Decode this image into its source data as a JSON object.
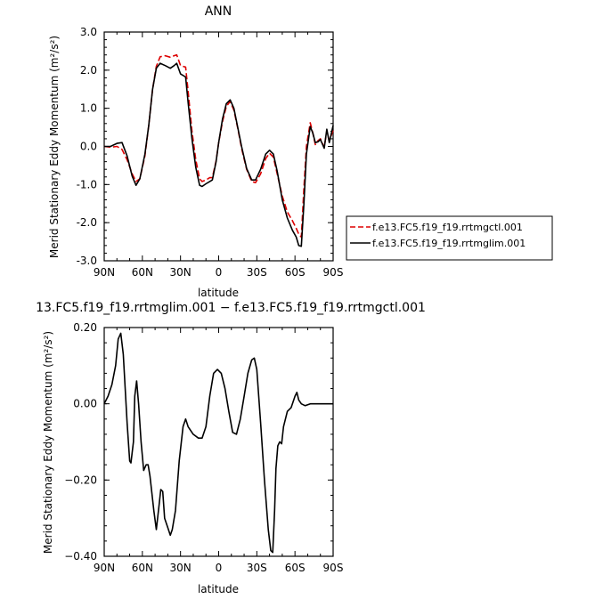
{
  "chart_data": [
    {
      "type": "line",
      "title": "ANN",
      "xlabel": "latitude",
      "ylabel": "Merid Stationary Eddy Momentum (m²/s²)",
      "xlim": [
        90,
        -90
      ],
      "ylim": [
        -3.0,
        3.0
      ],
      "x_ticks": [
        90,
        60,
        30,
        0,
        -30,
        -60,
        -90
      ],
      "x_tick_labels": [
        "90N",
        "60N",
        "30N",
        "0",
        "30S",
        "60S",
        "90S"
      ],
      "y_ticks": [
        -3.0,
        -2.0,
        -1.0,
        0.0,
        1.0,
        2.0,
        3.0
      ],
      "y_tick_labels": [
        "-3.0",
        "-2.0",
        "-1.0",
        "0.0",
        "1.0",
        "2.0",
        "3.0"
      ],
      "grid": false,
      "legend_position": "right",
      "series": [
        {
          "name": "f.e13.FC5.f19_f19.rrtmgctl.001",
          "color": "#dd0000",
          "dash": "dashed",
          "points": [
            [
              90,
              0.0
            ],
            [
              85,
              -0.02
            ],
            [
              80,
              0.0
            ],
            [
              76,
              -0.08
            ],
            [
              72,
              -0.35
            ],
            [
              68,
              -0.72
            ],
            [
              65,
              -0.92
            ],
            [
              62,
              -0.85
            ],
            [
              58,
              -0.25
            ],
            [
              55,
              0.55
            ],
            [
              52,
              1.5
            ],
            [
              49,
              2.1
            ],
            [
              46,
              2.35
            ],
            [
              42,
              2.38
            ],
            [
              38,
              2.34
            ],
            [
              35,
              2.38
            ],
            [
              33,
              2.4
            ],
            [
              30,
              2.12
            ],
            [
              26,
              2.08
            ],
            [
              24,
              1.45
            ],
            [
              21,
              0.4
            ],
            [
              18,
              -0.35
            ],
            [
              15,
              -0.85
            ],
            [
              13,
              -0.92
            ],
            [
              10,
              -0.88
            ],
            [
              7,
              -0.82
            ],
            [
              5,
              -0.82
            ],
            [
              2,
              -0.38
            ],
            [
              0,
              0.1
            ],
            [
              -3,
              0.65
            ],
            [
              -6,
              1.05
            ],
            [
              -9,
              1.18
            ],
            [
              -12,
              0.95
            ],
            [
              -15,
              0.48
            ],
            [
              -18,
              -0.05
            ],
            [
              -22,
              -0.6
            ],
            [
              -26,
              -0.92
            ],
            [
              -29,
              -0.95
            ],
            [
              -33,
              -0.72
            ],
            [
              -37,
              -0.32
            ],
            [
              -40,
              -0.18
            ],
            [
              -43,
              -0.28
            ],
            [
              -46,
              -0.72
            ],
            [
              -50,
              -1.3
            ],
            [
              -54,
              -1.72
            ],
            [
              -58,
              -1.95
            ],
            [
              -61,
              -2.15
            ],
            [
              -63,
              -2.3
            ],
            [
              -65,
              -2.38
            ],
            [
              -67,
              -1.1
            ],
            [
              -69,
              0.0
            ],
            [
              -72,
              0.62
            ],
            [
              -74,
              0.35
            ],
            [
              -76,
              0.05
            ],
            [
              -78,
              0.15
            ],
            [
              -80,
              0.2
            ],
            [
              -83,
              -0.02
            ],
            [
              -85,
              0.4
            ],
            [
              -87,
              0.15
            ],
            [
              -90,
              0.42
            ]
          ]
        },
        {
          "name": "f.e13.FC5.f19_f19.rrtmglim.001",
          "color": "#000000",
          "dash": "solid",
          "points": [
            [
              90,
              0.0
            ],
            [
              85,
              0.0
            ],
            [
              80,
              0.08
            ],
            [
              76,
              0.1
            ],
            [
              72,
              -0.25
            ],
            [
              68,
              -0.78
            ],
            [
              65,
              -1.02
            ],
            [
              62,
              -0.85
            ],
            [
              58,
              -0.2
            ],
            [
              55,
              0.55
            ],
            [
              52,
              1.5
            ],
            [
              49,
              2.05
            ],
            [
              46,
              2.18
            ],
            [
              42,
              2.12
            ],
            [
              38,
              2.05
            ],
            [
              35,
              2.12
            ],
            [
              33,
              2.18
            ],
            [
              30,
              1.9
            ],
            [
              26,
              1.82
            ],
            [
              24,
              1.15
            ],
            [
              21,
              0.2
            ],
            [
              18,
              -0.55
            ],
            [
              15,
              -1.02
            ],
            [
              13,
              -1.05
            ],
            [
              10,
              -0.98
            ],
            [
              7,
              -0.92
            ],
            [
              5,
              -0.88
            ],
            [
              2,
              -0.4
            ],
            [
              0,
              0.1
            ],
            [
              -3,
              0.72
            ],
            [
              -6,
              1.12
            ],
            [
              -9,
              1.22
            ],
            [
              -12,
              1.0
            ],
            [
              -15,
              0.5
            ],
            [
              -18,
              0.0
            ],
            [
              -22,
              -0.58
            ],
            [
              -26,
              -0.88
            ],
            [
              -29,
              -0.88
            ],
            [
              -33,
              -0.6
            ],
            [
              -37,
              -0.2
            ],
            [
              -40,
              -0.1
            ],
            [
              -43,
              -0.2
            ],
            [
              -46,
              -0.65
            ],
            [
              -50,
              -1.4
            ],
            [
              -54,
              -1.88
            ],
            [
              -58,
              -2.2
            ],
            [
              -61,
              -2.38
            ],
            [
              -63,
              -2.6
            ],
            [
              -65,
              -2.62
            ],
            [
              -67,
              -1.5
            ],
            [
              -69,
              -0.2
            ],
            [
              -72,
              0.52
            ],
            [
              -74,
              0.35
            ],
            [
              -76,
              0.1
            ],
            [
              -78,
              0.12
            ],
            [
              -80,
              0.18
            ],
            [
              -83,
              -0.05
            ],
            [
              -85,
              0.45
            ],
            [
              -87,
              0.1
            ],
            [
              -90,
              0.55
            ]
          ]
        }
      ]
    },
    {
      "type": "line",
      "title": "13.FC5.f19_f19.rrtmglim.001 − f.e13.FC5.f19_f19.rrtmgctl.001",
      "xlabel": "latitude",
      "ylabel": "Merid Stationary Eddy Momentum (m²/s²)",
      "xlim": [
        90,
        -90
      ],
      "ylim": [
        -0.4,
        0.2
      ],
      "x_ticks": [
        90,
        60,
        30,
        0,
        -30,
        -60,
        -90
      ],
      "x_tick_labels": [
        "90N",
        "60N",
        "30N",
        "0",
        "30S",
        "60S",
        "90S"
      ],
      "y_ticks": [
        -0.4,
        -0.2,
        0.0,
        0.2
      ],
      "y_tick_labels": [
        "−0.40",
        "−0.20",
        "0.00",
        "0.20"
      ],
      "grid": false,
      "series": [
        {
          "color": "#000000",
          "dash": "solid",
          "points": [
            [
              90,
              0.0
            ],
            [
              87,
              0.02
            ],
            [
              84,
              0.05
            ],
            [
              81,
              0.1
            ],
            [
              79,
              0.17
            ],
            [
              77,
              0.185
            ],
            [
              75,
              0.13
            ],
            [
              72,
              -0.05
            ],
            [
              70,
              -0.15
            ],
            [
              69,
              -0.155
            ],
            [
              67,
              -0.1
            ],
            [
              66,
              0.02
            ],
            [
              64.5,
              0.06
            ],
            [
              63,
              0.0
            ],
            [
              61,
              -0.1
            ],
            [
              59,
              -0.175
            ],
            [
              57,
              -0.16
            ],
            [
              55.5,
              -0.16
            ],
            [
              54,
              -0.19
            ],
            [
              51,
              -0.28
            ],
            [
              49,
              -0.33
            ],
            [
              47,
              -0.27
            ],
            [
              45.5,
              -0.225
            ],
            [
              44,
              -0.23
            ],
            [
              42.5,
              -0.3
            ],
            [
              40,
              -0.325
            ],
            [
              38,
              -0.345
            ],
            [
              36.5,
              -0.33
            ],
            [
              34,
              -0.28
            ],
            [
              31,
              -0.15
            ],
            [
              28,
              -0.06
            ],
            [
              26,
              -0.04
            ],
            [
              24,
              -0.06
            ],
            [
              20,
              -0.08
            ],
            [
              16,
              -0.09
            ],
            [
              13,
              -0.09
            ],
            [
              10,
              -0.06
            ],
            [
              7,
              0.02
            ],
            [
              4,
              0.08
            ],
            [
              1,
              0.09
            ],
            [
              -2,
              0.08
            ],
            [
              -5,
              0.04
            ],
            [
              -8,
              -0.02
            ],
            [
              -11,
              -0.075
            ],
            [
              -14,
              -0.08
            ],
            [
              -17,
              -0.04
            ],
            [
              -20,
              0.02
            ],
            [
              -23,
              0.08
            ],
            [
              -26,
              0.115
            ],
            [
              -28,
              0.12
            ],
            [
              -30,
              0.09
            ],
            [
              -33,
              -0.05
            ],
            [
              -36,
              -0.2
            ],
            [
              -39,
              -0.33
            ],
            [
              -41,
              -0.385
            ],
            [
              -42.5,
              -0.39
            ],
            [
              -44,
              -0.28
            ],
            [
              -45,
              -0.17
            ],
            [
              -46.5,
              -0.11
            ],
            [
              -48,
              -0.1
            ],
            [
              -49.5,
              -0.105
            ],
            [
              -51,
              -0.06
            ],
            [
              -54,
              -0.02
            ],
            [
              -57,
              -0.01
            ],
            [
              -60,
              0.02
            ],
            [
              -61.5,
              0.03
            ],
            [
              -63,
              0.01
            ],
            [
              -65,
              0.0
            ],
            [
              -68,
              -0.005
            ],
            [
              -72,
              0.0
            ],
            [
              -78,
              0.0
            ],
            [
              -84,
              0.0
            ],
            [
              -90,
              0.0
            ]
          ]
        }
      ]
    }
  ]
}
